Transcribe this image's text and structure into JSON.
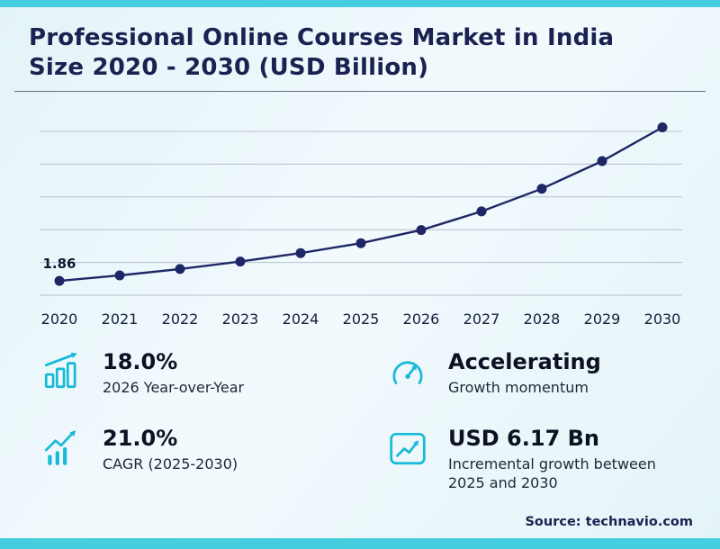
{
  "theme": {
    "accent": "#17b9d9",
    "bar": "#45cede",
    "navy": "#1b2150",
    "line": "#1e2766",
    "grid": "#b7c0ca",
    "background": "#e4f3f8"
  },
  "header": {
    "title": "Professional Online Courses Market in India Size 2020 - 2030 (USD Billion)"
  },
  "chart_data": {
    "type": "line",
    "title": "Professional Online Courses Market in India Size 2020 - 2030 (USD Billion)",
    "categories": [
      "2020",
      "2021",
      "2022",
      "2023",
      "2024",
      "2025",
      "2026",
      "2027",
      "2028",
      "2029",
      "2030"
    ],
    "values": [
      1.86,
      2.15,
      2.49,
      2.89,
      3.34,
      3.87,
      4.57,
      5.56,
      6.77,
      8.24,
      10.04
    ],
    "first_point_label": "1.86",
    "xlabel": "",
    "ylabel": "",
    "ylim": [
      1,
      10.4
    ],
    "gridlines": 6,
    "grid": "horizontal",
    "legend": "none"
  },
  "stats": {
    "items": [
      {
        "icon": "bar-chart-growth-icon",
        "value": "18.0%",
        "label": "2026 Year-over-Year"
      },
      {
        "icon": "gauge-icon",
        "value": "Accelerating",
        "label": "Growth momentum"
      },
      {
        "icon": "trend-up-icon",
        "value": "21.0%",
        "label": "CAGR (2025-2030)"
      },
      {
        "icon": "growth-chart-box-icon",
        "value": "USD 6.17 Bn",
        "label": "Incremental growth between 2025 and 2030"
      }
    ]
  },
  "footer": {
    "source": "Source: technavio.com"
  }
}
